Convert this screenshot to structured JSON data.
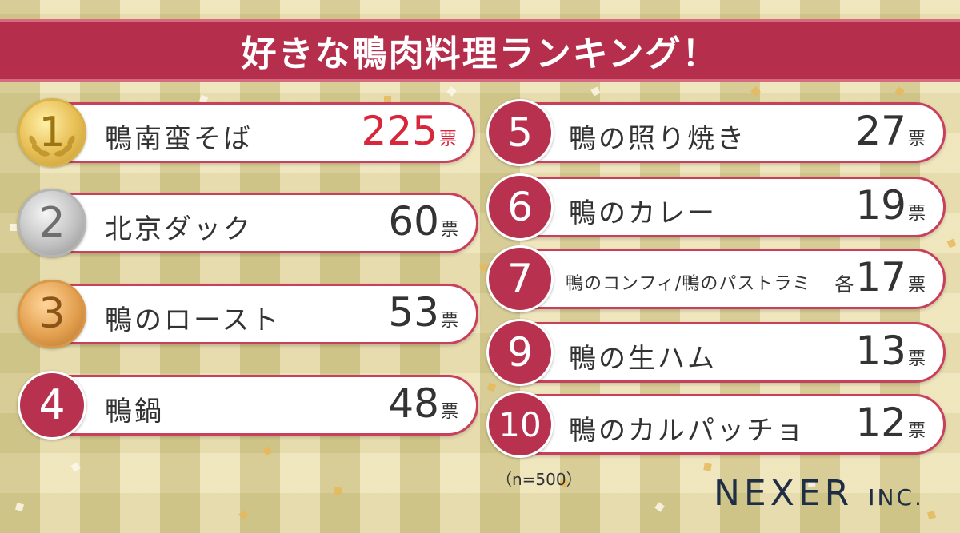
{
  "header": {
    "title": "好きな鴨肉料理ランキング！"
  },
  "chart_data": {
    "type": "table",
    "title": "好きな鴨肉料理ランキング！",
    "unit": "票",
    "rows": [
      {
        "rank": "1",
        "name": "鴨南蛮そば",
        "votes": 225
      },
      {
        "rank": "2",
        "name": "北京ダック",
        "votes": 60
      },
      {
        "rank": "3",
        "name": "鴨のロースト",
        "votes": 53
      },
      {
        "rank": "4",
        "name": "鴨鍋",
        "votes": 48
      },
      {
        "rank": "5",
        "name": "鴨の照り焼き",
        "votes": 27
      },
      {
        "rank": "6",
        "name": "鴨のカレー",
        "votes": 19
      },
      {
        "rank": "7",
        "name": "鴨のコンフィ/鴨のパストラミ",
        "votes": 17,
        "prefix": "各"
      },
      {
        "rank": "9",
        "name": "鴨の生ハム",
        "votes": 13
      },
      {
        "rank": "10",
        "name": "鴨のカルパッチョ",
        "votes": 12
      }
    ],
    "note": "（n=500）"
  },
  "footer": {
    "logo_main": "NEXER",
    "logo_suffix": "INC."
  },
  "colors": {
    "banner": "#b52f4d",
    "accent": "#c9405c",
    "top_votes": "#d8263b",
    "gold": "#e9c25a",
    "silver": "#c2c2c2",
    "bronze": "#e3a04f"
  }
}
